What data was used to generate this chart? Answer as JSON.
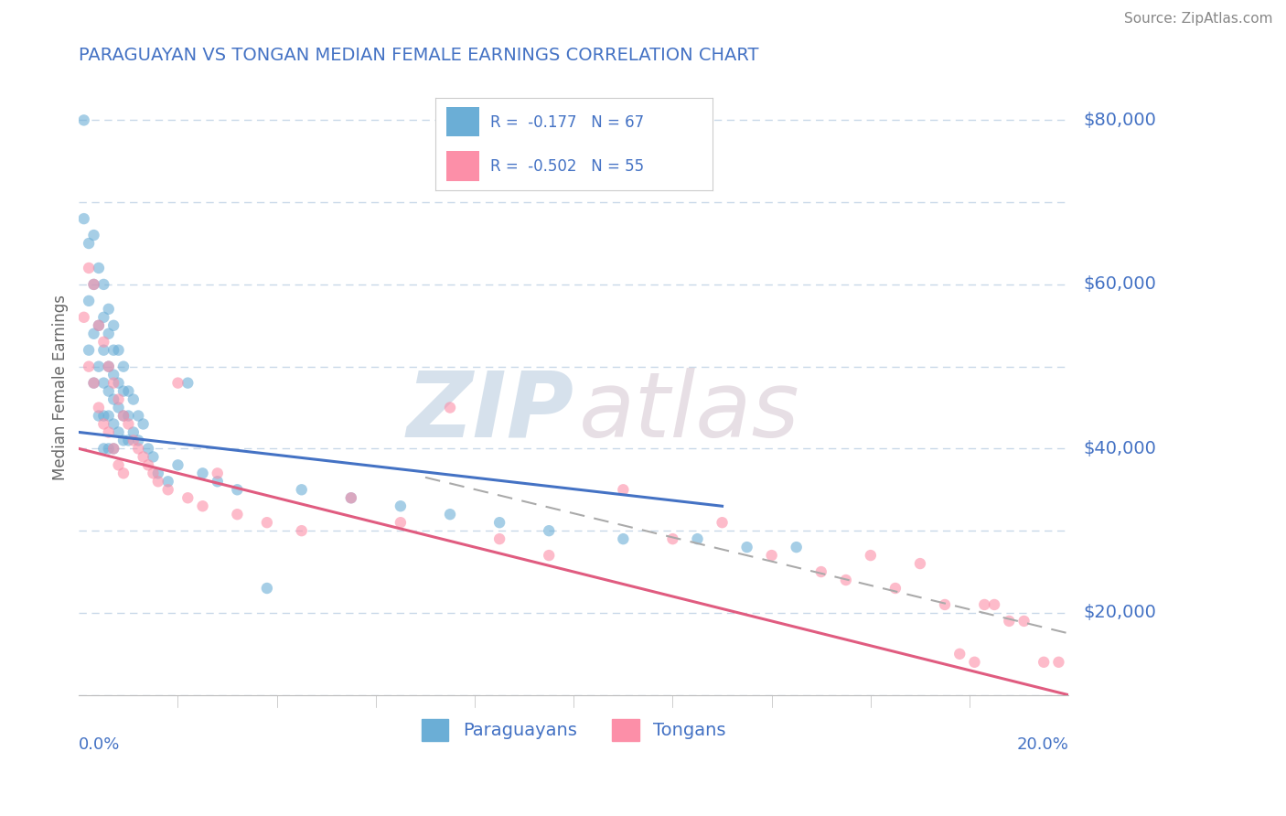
{
  "title": "PARAGUAYAN VS TONGAN MEDIAN FEMALE EARNINGS CORRELATION CHART",
  "source": "Source: ZipAtlas.com",
  "ylabel": "Median Female Earnings",
  "xmin": 0.0,
  "xmax": 0.2,
  "ymin": 10000,
  "ymax": 85000,
  "yticks": [
    20000,
    40000,
    60000,
    80000
  ],
  "ytick_labels": [
    "$20,000",
    "$40,000",
    "$60,000",
    "$80,000"
  ],
  "xtick_left_label": "0.0%",
  "xtick_right_label": "20.0%",
  "paraguayan_color": "#6baed6",
  "tongan_color": "#fc8fa8",
  "paraguayan_line_color": "#4472c4",
  "tongan_line_color": "#e05c80",
  "paraguayan_R": -0.177,
  "paraguayan_N": 67,
  "tongan_R": -0.502,
  "tongan_N": 55,
  "paraguayan_scatter_x": [
    0.001,
    0.001,
    0.002,
    0.002,
    0.002,
    0.003,
    0.003,
    0.003,
    0.003,
    0.004,
    0.004,
    0.004,
    0.004,
    0.005,
    0.005,
    0.005,
    0.005,
    0.005,
    0.005,
    0.006,
    0.006,
    0.006,
    0.006,
    0.006,
    0.006,
    0.007,
    0.007,
    0.007,
    0.007,
    0.007,
    0.007,
    0.008,
    0.008,
    0.008,
    0.008,
    0.009,
    0.009,
    0.009,
    0.009,
    0.01,
    0.01,
    0.01,
    0.011,
    0.011,
    0.012,
    0.012,
    0.013,
    0.014,
    0.015,
    0.016,
    0.018,
    0.02,
    0.022,
    0.025,
    0.028,
    0.032,
    0.038,
    0.045,
    0.055,
    0.065,
    0.075,
    0.085,
    0.095,
    0.11,
    0.125,
    0.135,
    0.145
  ],
  "paraguayan_scatter_y": [
    80000,
    68000,
    65000,
    58000,
    52000,
    66000,
    60000,
    54000,
    48000,
    62000,
    55000,
    50000,
    44000,
    60000,
    56000,
    52000,
    48000,
    44000,
    40000,
    57000,
    54000,
    50000,
    47000,
    44000,
    40000,
    55000,
    52000,
    49000,
    46000,
    43000,
    40000,
    52000,
    48000,
    45000,
    42000,
    50000,
    47000,
    44000,
    41000,
    47000,
    44000,
    41000,
    46000,
    42000,
    44000,
    41000,
    43000,
    40000,
    39000,
    37000,
    36000,
    38000,
    48000,
    37000,
    36000,
    35000,
    23000,
    35000,
    34000,
    33000,
    32000,
    31000,
    30000,
    29000,
    29000,
    28000,
    28000
  ],
  "tongan_scatter_x": [
    0.001,
    0.002,
    0.002,
    0.003,
    0.003,
    0.004,
    0.004,
    0.005,
    0.005,
    0.006,
    0.006,
    0.007,
    0.007,
    0.008,
    0.008,
    0.009,
    0.009,
    0.01,
    0.011,
    0.012,
    0.013,
    0.014,
    0.015,
    0.016,
    0.018,
    0.02,
    0.022,
    0.025,
    0.028,
    0.032,
    0.038,
    0.045,
    0.055,
    0.065,
    0.075,
    0.085,
    0.095,
    0.11,
    0.12,
    0.13,
    0.14,
    0.15,
    0.155,
    0.16,
    0.165,
    0.17,
    0.175,
    0.178,
    0.181,
    0.183,
    0.185,
    0.188,
    0.191,
    0.195,
    0.198
  ],
  "tongan_scatter_y": [
    56000,
    62000,
    50000,
    60000,
    48000,
    55000,
    45000,
    53000,
    43000,
    50000,
    42000,
    48000,
    40000,
    46000,
    38000,
    44000,
    37000,
    43000,
    41000,
    40000,
    39000,
    38000,
    37000,
    36000,
    35000,
    48000,
    34000,
    33000,
    37000,
    32000,
    31000,
    30000,
    34000,
    31000,
    45000,
    29000,
    27000,
    35000,
    29000,
    31000,
    27000,
    25000,
    24000,
    27000,
    23000,
    26000,
    21000,
    15000,
    14000,
    21000,
    21000,
    19000,
    19000,
    14000,
    14000
  ],
  "paraguayan_line_x": [
    0.0,
    0.13
  ],
  "paraguayan_line_y": [
    42000,
    33000
  ],
  "tongan_line_x": [
    0.0,
    0.2
  ],
  "tongan_line_y": [
    40000,
    10000
  ],
  "dashed_line_x": [
    0.07,
    0.2
  ],
  "dashed_line_y": [
    36500,
    17500
  ],
  "background_color": "#ffffff",
  "grid_color": "#c8d8e8",
  "axis_color": "#4472c4",
  "title_color": "#4472c4",
  "ylabel_color": "#666666",
  "source_color": "#888888"
}
